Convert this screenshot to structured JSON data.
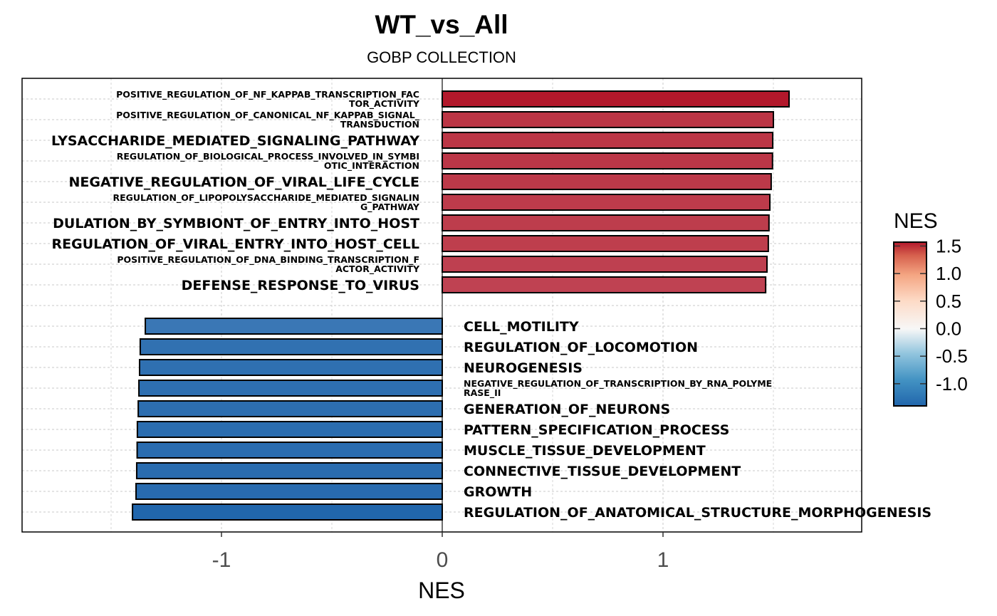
{
  "chart_data": {
    "type": "bar",
    "orientation": "horizontal",
    "title": "WT_vs_All",
    "subtitle": "GOBP COLLECTION",
    "xlabel": "NES",
    "ylabel": "",
    "xlim": [
      -1.9,
      1.9
    ],
    "xticks": [
      -1,
      0,
      1
    ],
    "xtick_labels": [
      "-1",
      "0",
      "1"
    ],
    "grid": true,
    "colors": {
      "low": "#2166AC",
      "mid": "#F7F7F7",
      "high": "#B2182B"
    },
    "legend": {
      "title": "NES",
      "position": "right",
      "range": [
        -1.403,
        1.571
      ],
      "ticks": [
        1.5,
        1.0,
        0.5,
        0.0,
        -0.5,
        -1.0
      ],
      "tick_labels": [
        "1.5",
        "1.0",
        "0.5",
        "0.0",
        "-0.5",
        "-1.0"
      ]
    },
    "bars": [
      {
        "label": "POSITIVE_REGULATION_OF_NF_KAPPAB_TRANSCRIPTION_FACTOR_ACTIVITY",
        "lines": [
          "POSITIVE_REGULATION_OF_NF_KAPPAB_TRANSCRIPTION_FAC",
          "TOR_ACTIVITY"
        ],
        "value": 1.571
      },
      {
        "label": "POSITIVE_REGULATION_OF_CANONICAL_NF_KAPPAB_SIGNAL_TRANSDUCTION",
        "lines": [
          "POSITIVE_REGULATION_OF_CANONICAL_NF_KAPPAB_SIGNAL_",
          "TRANSDUCTION"
        ],
        "value": 1.5
      },
      {
        "label": "LYSACCHARIDE_MEDIATED_SIGNALING_PATHWAY",
        "lines": [
          "LYSACCHARIDE_MEDIATED_SIGNALING_PATHWAY"
        ],
        "value": 1.497
      },
      {
        "label": "REGULATION_OF_BIOLOGICAL_PROCESS_INVOLVED_IN_SYMBIOTIC_INTERACTION",
        "lines": [
          "REGULATION_OF_BIOLOGICAL_PROCESS_INVOLVED_IN_SYMBI",
          "OTIC_INTERACTION"
        ],
        "value": 1.496
      },
      {
        "label": "NEGATIVE_REGULATION_OF_VIRAL_LIFE_CYCLE",
        "lines": [
          "NEGATIVE_REGULATION_OF_VIRAL_LIFE_CYCLE"
        ],
        "value": 1.49
      },
      {
        "label": "REGULATION_OF_LIPOPOLYSACCHARIDE_MEDIATED_SIGNALING_PATHWAY",
        "lines": [
          "REGULATION_OF_LIPOPOLYSACCHARIDE_MEDIATED_SIGNALIN",
          "G_PATHWAY"
        ],
        "value": 1.484
      },
      {
        "label": "DULATION_BY_SYMBIONT_OF_ENTRY_INTO_HOST",
        "lines": [
          "DULATION_BY_SYMBIONT_OF_ENTRY_INTO_HOST"
        ],
        "value": 1.48
      },
      {
        "label": "REGULATION_OF_VIRAL_ENTRY_INTO_HOST_CELL",
        "lines": [
          "REGULATION_OF_VIRAL_ENTRY_INTO_HOST_CELL"
        ],
        "value": 1.477
      },
      {
        "label": "POSITIVE_REGULATION_OF_DNA_BINDING_TRANSCRIPTION_FACTOR_ACTIVITY",
        "lines": [
          "POSITIVE_REGULATION_OF_DNA_BINDING_TRANSCRIPTION_F",
          "ACTOR_ACTIVITY"
        ],
        "value": 1.471
      },
      {
        "label": "DEFENSE_RESPONSE_TO_VIRUS",
        "lines": [
          "DEFENSE_RESPONSE_TO_VIRUS"
        ],
        "value": 1.465
      },
      {
        "label": "CELL_MOTILITY",
        "lines": [
          "CELL_MOTILITY"
        ],
        "value": -1.345
      },
      {
        "label": "REGULATION_OF_LOCOMOTION",
        "lines": [
          "REGULATION_OF_LOCOMOTION"
        ],
        "value": -1.368
      },
      {
        "label": "NEUROGENESIS",
        "lines": [
          "NEUROGENESIS"
        ],
        "value": -1.371
      },
      {
        "label": "NEGATIVE_REGULATION_OF_TRANSCRIPTION_BY_RNA_POLYMERASE_II",
        "lines": [
          "NEGATIVE_REGULATION_OF_TRANSCRIPTION_BY_RNA_POLYME",
          "RASE_II"
        ],
        "value": -1.374
      },
      {
        "label": "GENERATION_OF_NEURONS",
        "lines": [
          "GENERATION_OF_NEURONS"
        ],
        "value": -1.377
      },
      {
        "label": "PATTERN_SPECIFICATION_PROCESS",
        "lines": [
          "PATTERN_SPECIFICATION_PROCESS"
        ],
        "value": -1.381
      },
      {
        "label": "MUSCLE_TISSUE_DEVELOPMENT",
        "lines": [
          "MUSCLE_TISSUE_DEVELOPMENT"
        ],
        "value": -1.382
      },
      {
        "label": "CONNECTIVE_TISSUE_DEVELOPMENT",
        "lines": [
          "CONNECTIVE_TISSUE_DEVELOPMENT"
        ],
        "value": -1.384
      },
      {
        "label": "GROWTH",
        "lines": [
          "GROWTH"
        ],
        "value": -1.387
      },
      {
        "label": "REGULATION_OF_ANATOMICAL_STRUCTURE_MORPHOGENESIS",
        "lines": [
          "REGULATION_OF_ANATOMICAL_STRUCTURE_MOR"
        ],
        "value": -1.403
      }
    ]
  }
}
